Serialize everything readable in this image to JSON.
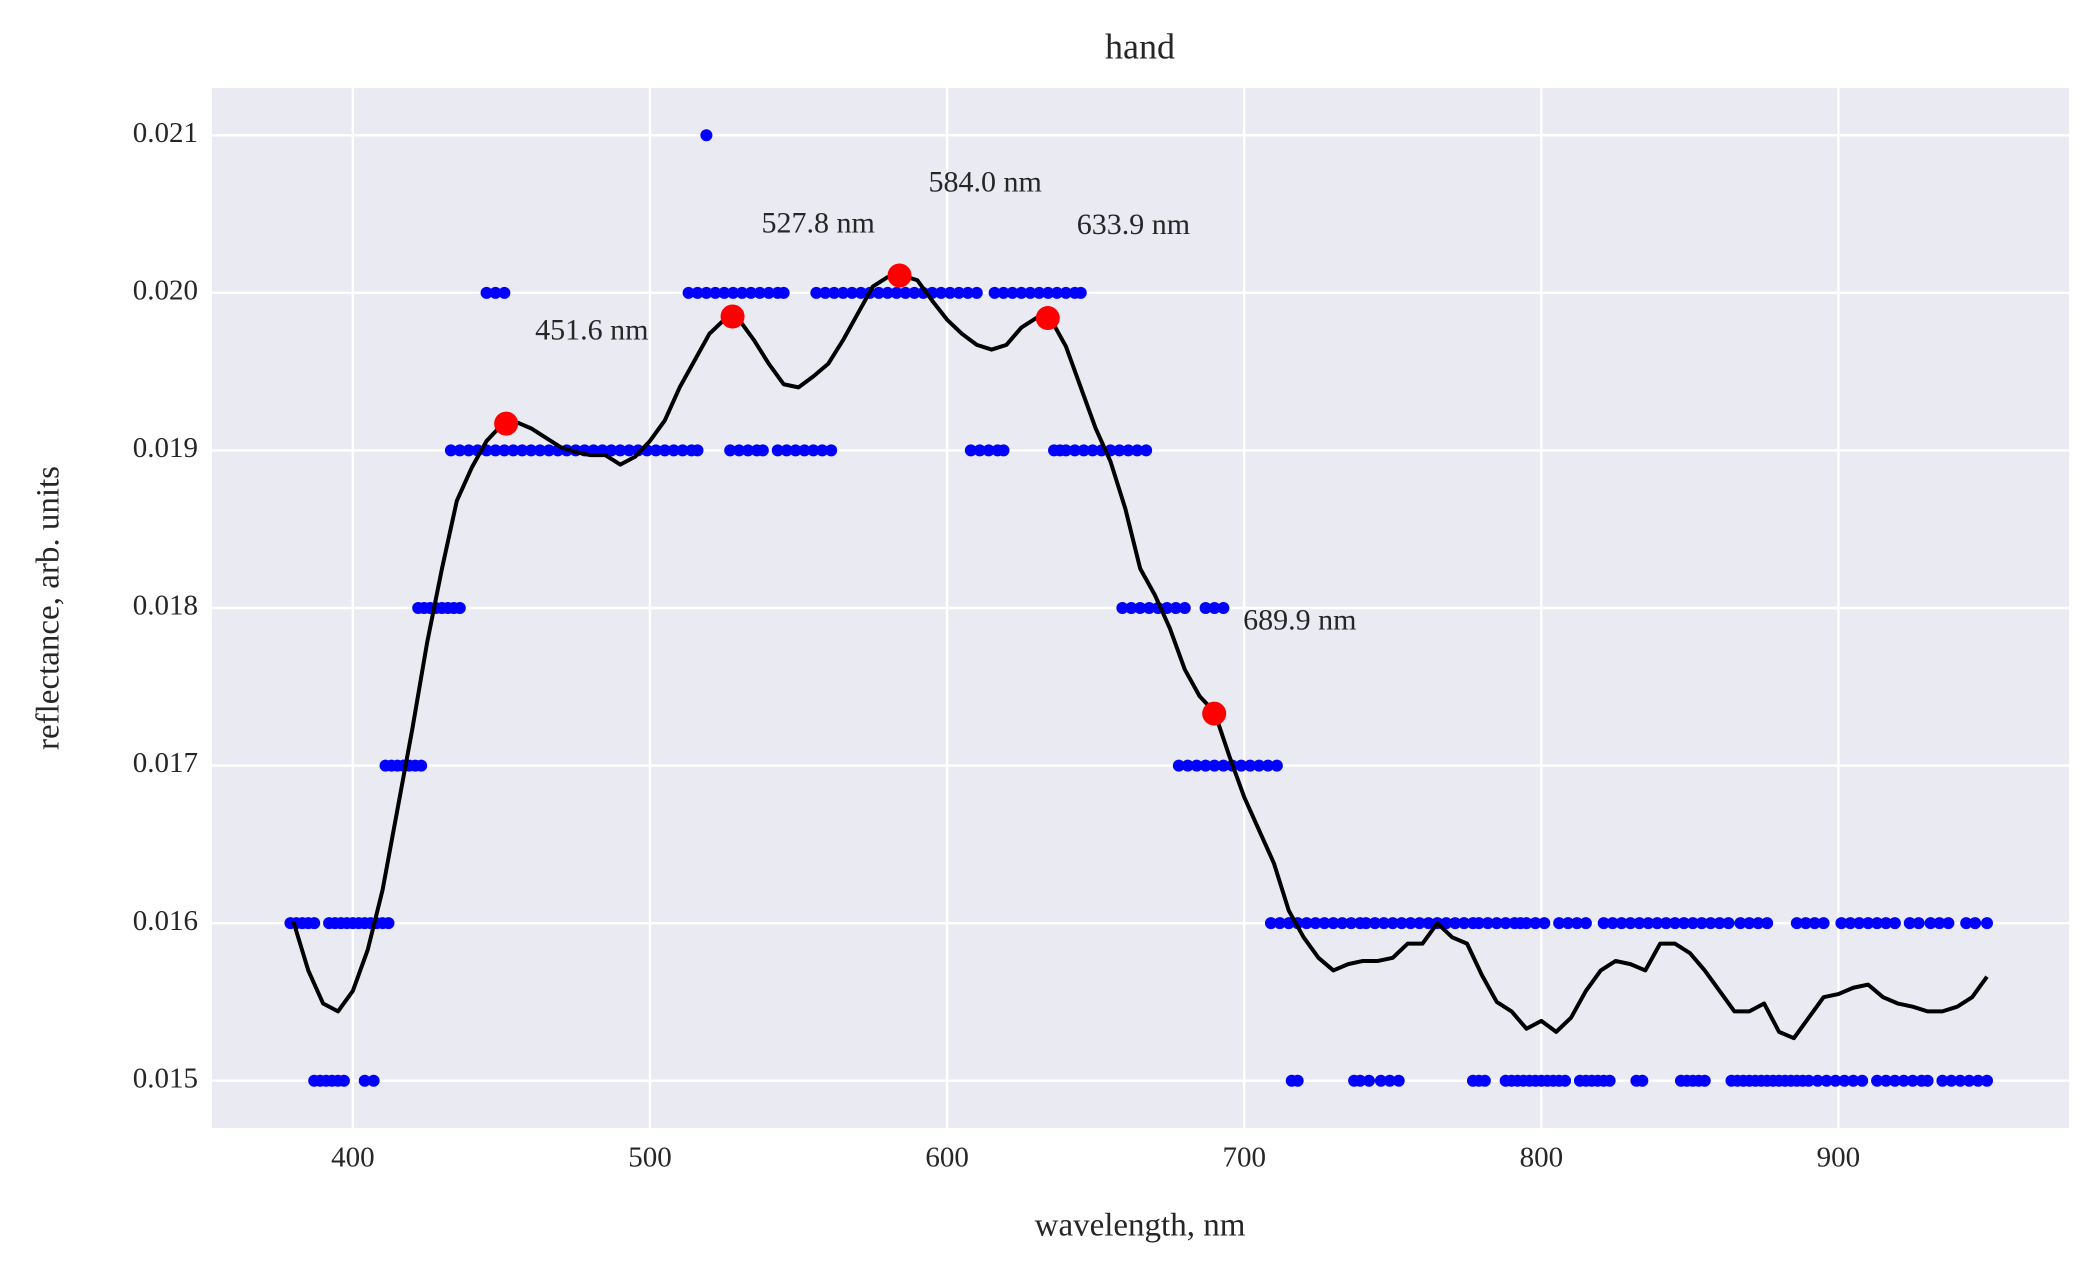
{
  "chart_data": {
    "type": "scatter",
    "title": "hand",
    "xlabel": "wavelength, nm",
    "ylabel": "reflectance, arb. units",
    "xlim": [
      352.6,
      977.6
    ],
    "ylim": [
      0.0147,
      0.0213
    ],
    "xticks": [
      400,
      500,
      600,
      700,
      800,
      900
    ],
    "yticks": [
      0.015,
      0.016,
      0.017,
      0.018,
      0.019,
      {
        "value": 0.02,
        "label": "0.020"
      },
      0.021
    ],
    "grid": true,
    "background": "#eaeaf2",
    "series": [
      {
        "type": "scatter",
        "color": "#0000ff",
        "x": [
          387,
          389,
          391,
          393,
          395,
          397,
          404,
          407,
          716,
          718,
          737,
          739,
          742,
          746,
          749,
          752,
          777,
          779,
          781,
          788,
          790,
          792,
          794,
          796,
          798,
          800,
          802,
          804,
          806,
          808,
          813,
          815,
          817,
          819,
          821,
          823,
          832,
          834,
          847,
          849,
          851,
          853,
          855,
          864,
          866,
          868,
          870,
          872,
          874,
          876,
          878,
          880,
          882,
          884,
          886,
          888,
          890,
          893,
          896,
          899,
          902,
          905,
          908,
          913,
          916,
          919,
          922,
          925,
          928,
          930,
          935,
          938,
          941,
          944,
          947,
          950
        ],
        "values": [
          0.015,
          0.015,
          0.015,
          0.015,
          0.015,
          0.015,
          0.015,
          0.015,
          0.015,
          0.015,
          0.015,
          0.015,
          0.015,
          0.015,
          0.015,
          0.015,
          0.015,
          0.015,
          0.015,
          0.015,
          0.015,
          0.015,
          0.015,
          0.015,
          0.015,
          0.015,
          0.015,
          0.015,
          0.015,
          0.015,
          0.015,
          0.015,
          0.015,
          0.015,
          0.015,
          0.015,
          0.015,
          0.015,
          0.015,
          0.015,
          0.015,
          0.015,
          0.015,
          0.015,
          0.015,
          0.015,
          0.015,
          0.015,
          0.015,
          0.015,
          0.015,
          0.015,
          0.015,
          0.015,
          0.015,
          0.015,
          0.015,
          0.015,
          0.015,
          0.015,
          0.015,
          0.015,
          0.015,
          0.015,
          0.015,
          0.015,
          0.015,
          0.015,
          0.015,
          0.015,
          0.015,
          0.015,
          0.015,
          0.015,
          0.015,
          0.015
        ]
      },
      {
        "type": "scatter",
        "color": "#0000ff",
        "x": [
          379,
          381,
          383,
          385,
          387,
          392,
          394,
          396,
          398,
          400,
          402,
          404,
          406,
          408,
          410,
          412,
          709,
          712,
          715,
          718,
          721,
          724,
          727,
          730,
          733,
          736,
          739,
          741,
          744,
          747,
          750,
          753,
          756,
          759,
          762,
          765,
          768,
          771,
          774,
          777,
          779,
          782,
          785,
          788,
          791,
          793,
          795,
          798,
          801,
          806,
          809,
          812,
          815,
          821,
          824,
          827,
          830,
          833,
          836,
          839,
          842,
          845,
          848,
          851,
          854,
          857,
          860,
          863,
          867,
          870,
          873,
          876,
          886,
          889,
          892,
          895,
          901,
          904,
          907,
          910,
          913,
          916,
          919,
          924,
          927,
          931,
          934,
          937,
          943,
          946,
          950
        ],
        "values": [
          0.016,
          0.016,
          0.016,
          0.016,
          0.016,
          0.016,
          0.016,
          0.016,
          0.016,
          0.016,
          0.016,
          0.016,
          0.016,
          0.016,
          0.016,
          0.016,
          0.016,
          0.016,
          0.016,
          0.016,
          0.016,
          0.016,
          0.016,
          0.016,
          0.016,
          0.016,
          0.016,
          0.016,
          0.016,
          0.016,
          0.016,
          0.016,
          0.016,
          0.016,
          0.016,
          0.016,
          0.016,
          0.016,
          0.016,
          0.016,
          0.016,
          0.016,
          0.016,
          0.016,
          0.016,
          0.016,
          0.016,
          0.016,
          0.016,
          0.016,
          0.016,
          0.016,
          0.016,
          0.016,
          0.016,
          0.016,
          0.016,
          0.016,
          0.016,
          0.016,
          0.016,
          0.016,
          0.016,
          0.016,
          0.016,
          0.016,
          0.016,
          0.016,
          0.016,
          0.016,
          0.016,
          0.016,
          0.016,
          0.016,
          0.016,
          0.016,
          0.016,
          0.016,
          0.016,
          0.016,
          0.016,
          0.016,
          0.016,
          0.016,
          0.016,
          0.016,
          0.016,
          0.016,
          0.016,
          0.016,
          0.016
        ]
      },
      {
        "type": "scatter",
        "color": "#0000ff",
        "x": [
          411,
          413,
          415,
          417,
          419,
          421,
          423,
          678,
          681,
          684,
          687,
          690,
          693,
          696,
          699,
          702,
          705,
          708,
          711
        ],
        "values": [
          0.017,
          0.017,
          0.017,
          0.017,
          0.017,
          0.017,
          0.017,
          0.017,
          0.017,
          0.017,
          0.017,
          0.017,
          0.017,
          0.017,
          0.017,
          0.017,
          0.017,
          0.017,
          0.017
        ]
      },
      {
        "type": "scatter",
        "color": "#0000ff",
        "x": [
          422,
          424,
          426,
          428,
          430,
          432,
          434,
          436,
          659,
          662,
          665,
          668,
          671,
          674,
          677,
          680,
          687,
          690,
          693
        ],
        "values": [
          0.018,
          0.018,
          0.018,
          0.018,
          0.018,
          0.018,
          0.018,
          0.018,
          0.018,
          0.018,
          0.018,
          0.018,
          0.018,
          0.018,
          0.018,
          0.018,
          0.018,
          0.018,
          0.018
        ]
      },
      {
        "type": "scatter",
        "color": "#0000ff",
        "x": [
          433,
          436,
          439,
          442,
          445,
          448,
          451,
          454,
          457,
          460,
          463,
          466,
          469,
          472,
          475,
          478,
          481,
          484,
          487,
          490,
          493,
          496,
          499,
          502,
          505,
          508,
          511,
          514,
          516,
          527,
          530,
          533,
          536,
          538,
          543,
          546,
          549,
          552,
          555,
          558,
          561,
          608,
          611,
          614,
          617,
          619,
          636,
          638,
          640,
          643,
          646,
          649,
          652,
          655,
          658,
          661,
          664,
          667
        ],
        "values": [
          0.019,
          0.019,
          0.019,
          0.019,
          0.019,
          0.019,
          0.019,
          0.019,
          0.019,
          0.019,
          0.019,
          0.019,
          0.019,
          0.019,
          0.019,
          0.019,
          0.019,
          0.019,
          0.019,
          0.019,
          0.019,
          0.019,
          0.019,
          0.019,
          0.019,
          0.019,
          0.019,
          0.019,
          0.019,
          0.019,
          0.019,
          0.019,
          0.019,
          0.019,
          0.019,
          0.019,
          0.019,
          0.019,
          0.019,
          0.019,
          0.019,
          0.019,
          0.019,
          0.019,
          0.019,
          0.019,
          0.019,
          0.019,
          0.019,
          0.019,
          0.019,
          0.019,
          0.019,
          0.019,
          0.019,
          0.019,
          0.019,
          0.019
        ]
      },
      {
        "type": "scatter",
        "color": "#0000ff",
        "x": [
          445,
          448,
          451,
          513,
          516,
          519,
          522,
          525,
          528,
          531,
          534,
          537,
          540,
          543,
          545,
          556,
          559,
          562,
          565,
          568,
          571,
          574,
          577,
          580,
          583,
          586,
          589,
          592,
          595,
          598,
          601,
          604,
          607,
          610,
          616,
          619,
          622,
          625,
          628,
          631,
          634,
          637,
          640,
          643,
          645
        ],
        "values": [
          0.02,
          0.02,
          0.02,
          0.02,
          0.02,
          0.02,
          0.02,
          0.02,
          0.02,
          0.02,
          0.02,
          0.02,
          0.02,
          0.02,
          0.02,
          0.02,
          0.02,
          0.02,
          0.02,
          0.02,
          0.02,
          0.02,
          0.02,
          0.02,
          0.02,
          0.02,
          0.02,
          0.02,
          0.02,
          0.02,
          0.02,
          0.02,
          0.02,
          0.02,
          0.02,
          0.02,
          0.02,
          0.02,
          0.02,
          0.02,
          0.02,
          0.02,
          0.02,
          0.02,
          0.02
        ]
      },
      {
        "type": "scatter",
        "color": "#0000ff",
        "x": [
          519
        ],
        "values": [
          0.021
        ]
      },
      {
        "type": "line",
        "color": "#000000",
        "x": [
          380,
          385,
          390,
          395,
          400,
          405,
          410,
          415,
          420,
          425,
          430,
          435,
          440,
          445,
          450,
          455,
          460,
          465,
          470,
          475,
          480,
          485,
          490,
          495,
          500,
          505,
          510,
          515,
          520,
          525,
          530,
          535,
          540,
          545,
          550,
          555,
          560,
          565,
          570,
          575,
          580,
          585,
          590,
          595,
          600,
          605,
          610,
          615,
          620,
          625,
          630,
          635,
          640,
          645,
          650,
          655,
          660,
          665,
          670,
          675,
          680,
          685,
          690,
          695,
          700,
          705,
          710,
          715,
          720,
          725,
          730,
          735,
          740,
          745,
          750,
          755,
          760,
          765,
          770,
          775,
          780,
          785,
          790,
          795,
          800,
          805,
          810,
          815,
          820,
          825,
          830,
          835,
          840,
          845,
          850,
          855,
          860,
          865,
          870,
          875,
          880,
          885,
          890,
          895,
          900,
          905,
          910,
          915,
          920,
          925,
          930,
          935,
          940,
          945,
          950
        ],
        "values": [
          0.01601,
          0.0157,
          0.01549,
          0.01544,
          0.01557,
          0.01583,
          0.01621,
          0.01672,
          0.01723,
          0.01778,
          0.01825,
          0.01868,
          0.01889,
          0.01906,
          0.01916,
          0.01918,
          0.01914,
          0.01908,
          0.01902,
          0.01899,
          0.01897,
          0.01897,
          0.01891,
          0.01896,
          0.01906,
          0.01919,
          0.0194,
          0.01957,
          0.01974,
          0.01983,
          0.01983,
          0.0197,
          0.01955,
          0.01942,
          0.0194,
          0.01947,
          0.01955,
          0.0197,
          0.01987,
          0.02004,
          0.0201,
          0.02011,
          0.02008,
          0.01995,
          0.01983,
          0.01974,
          0.01967,
          0.01964,
          0.01967,
          0.01978,
          0.01984,
          0.01983,
          0.01966,
          0.0194,
          0.01914,
          0.01893,
          0.01863,
          0.01825,
          0.01808,
          0.01787,
          0.01761,
          0.01744,
          0.01734,
          0.01706,
          0.0168,
          0.01659,
          0.01638,
          0.01608,
          0.01591,
          0.01578,
          0.0157,
          0.01574,
          0.01576,
          0.01576,
          0.01578,
          0.01587,
          0.01587,
          0.016,
          0.01591,
          0.01587,
          0.01567,
          0.0155,
          0.01544,
          0.01533,
          0.01538,
          0.01531,
          0.0154,
          0.01557,
          0.0157,
          0.01576,
          0.01574,
          0.0157,
          0.01587,
          0.01587,
          0.01581,
          0.0157,
          0.01557,
          0.01544,
          0.01544,
          0.01549,
          0.01531,
          0.01527,
          0.0154,
          0.01553,
          0.01555,
          0.01559,
          0.01561,
          0.01553,
          0.01549,
          0.01547,
          0.01544,
          0.01544,
          0.01547,
          0.01553,
          0.01566
        ]
      },
      {
        "type": "peaks",
        "color": "#ff0000",
        "x": [
          451.6,
          527.8,
          584.0,
          633.9,
          689.9
        ],
        "values": [
          0.01917,
          0.01985,
          0.02011,
          0.01984,
          0.01733
        ],
        "point_labels": [
          "451.6 nm",
          "527.8 nm",
          "584.0 nm",
          "633.9 nm",
          "689.9 nm"
        ]
      }
    ]
  }
}
